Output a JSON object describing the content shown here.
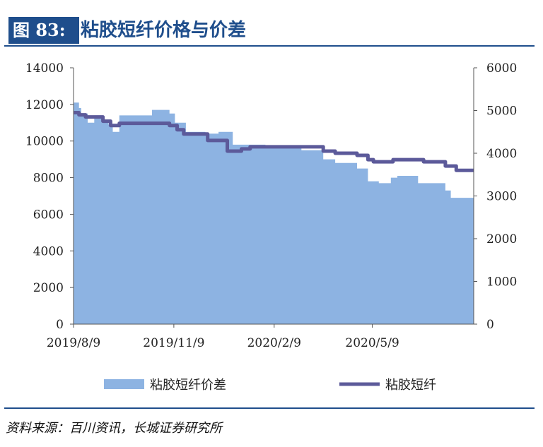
{
  "header": {
    "figure_label": "图 83:",
    "title": "粘胶短纤价格与价差"
  },
  "footer": {
    "source": "资料来源：百川资讯，长城证券研究所"
  },
  "colors": {
    "spread_area": "#8db3e2",
    "price_line": "#5c5a9a",
    "accent": "#1f4e8c"
  },
  "chart_data": {
    "type": "area+line",
    "title": "粘胶短纤价格与价差",
    "x_ticks": [
      "2019/8/9",
      "2019/11/9",
      "2020/2/9",
      "2020/5/9"
    ],
    "x_range": [
      "2019-08-09",
      "2020-08-10"
    ],
    "left_axis": {
      "range": [
        0,
        14000
      ],
      "ticks": [
        "0",
        "2000",
        "4000",
        "6000",
        "8000",
        "10000",
        "12000",
        "14000"
      ]
    },
    "right_axis": {
      "range": [
        0,
        6000
      ],
      "ticks": [
        "0",
        "1000",
        "2000",
        "3000",
        "4000",
        "5000",
        "6000"
      ]
    },
    "legend": {
      "placement": "bottom"
    },
    "series": [
      {
        "name": "粘胶短纤价差",
        "type": "area",
        "axis": "left",
        "points": [
          [
            "2019-08-09",
            12100
          ],
          [
            "2019-08-14",
            11800
          ],
          [
            "2019-08-16",
            11500
          ],
          [
            "2019-08-22",
            11000
          ],
          [
            "2019-08-28",
            11400
          ],
          [
            "2019-09-05",
            11100
          ],
          [
            "2019-09-10",
            10900
          ],
          [
            "2019-09-14",
            10500
          ],
          [
            "2019-09-20",
            11400
          ],
          [
            "2019-10-20",
            11700
          ],
          [
            "2019-11-05",
            11500
          ],
          [
            "2019-11-10",
            11000
          ],
          [
            "2019-11-20",
            10500
          ],
          [
            "2019-12-08",
            10400
          ],
          [
            "2019-12-20",
            10500
          ],
          [
            "2020-01-02",
            9800
          ],
          [
            "2020-01-20",
            9800
          ],
          [
            "2020-02-01",
            9700
          ],
          [
            "2020-03-05",
            9500
          ],
          [
            "2020-03-25",
            9000
          ],
          [
            "2020-04-05",
            8800
          ],
          [
            "2020-04-25",
            8500
          ],
          [
            "2020-05-05",
            7800
          ],
          [
            "2020-05-15",
            7700
          ],
          [
            "2020-05-26",
            8000
          ],
          [
            "2020-06-01",
            8100
          ],
          [
            "2020-06-20",
            7700
          ],
          [
            "2020-07-15",
            7300
          ],
          [
            "2020-07-20",
            6900
          ],
          [
            "2020-08-10",
            6900
          ]
        ]
      },
      {
        "name": "粘胶短纤",
        "type": "line",
        "axis": "right",
        "points": [
          [
            "2019-08-09",
            4950
          ],
          [
            "2019-08-14",
            4900
          ],
          [
            "2019-08-20",
            4850
          ],
          [
            "2019-09-05",
            4750
          ],
          [
            "2019-09-12",
            4650
          ],
          [
            "2019-09-20",
            4700
          ],
          [
            "2019-10-25",
            4700
          ],
          [
            "2019-11-05",
            4650
          ],
          [
            "2019-11-12",
            4550
          ],
          [
            "2019-11-18",
            4450
          ],
          [
            "2019-12-05",
            4450
          ],
          [
            "2019-12-10",
            4300
          ],
          [
            "2019-12-24",
            4300
          ],
          [
            "2019-12-28",
            4050
          ],
          [
            "2020-01-10",
            4100
          ],
          [
            "2020-01-18",
            4150
          ],
          [
            "2020-03-20",
            4150
          ],
          [
            "2020-03-25",
            4050
          ],
          [
            "2020-04-05",
            4000
          ],
          [
            "2020-04-25",
            3950
          ],
          [
            "2020-05-05",
            3850
          ],
          [
            "2020-05-10",
            3800
          ],
          [
            "2020-05-25",
            3800
          ],
          [
            "2020-05-28",
            3850
          ],
          [
            "2020-06-10",
            3850
          ],
          [
            "2020-06-25",
            3800
          ],
          [
            "2020-07-15",
            3700
          ],
          [
            "2020-07-25",
            3600
          ],
          [
            "2020-08-10",
            3600
          ]
        ]
      }
    ]
  }
}
